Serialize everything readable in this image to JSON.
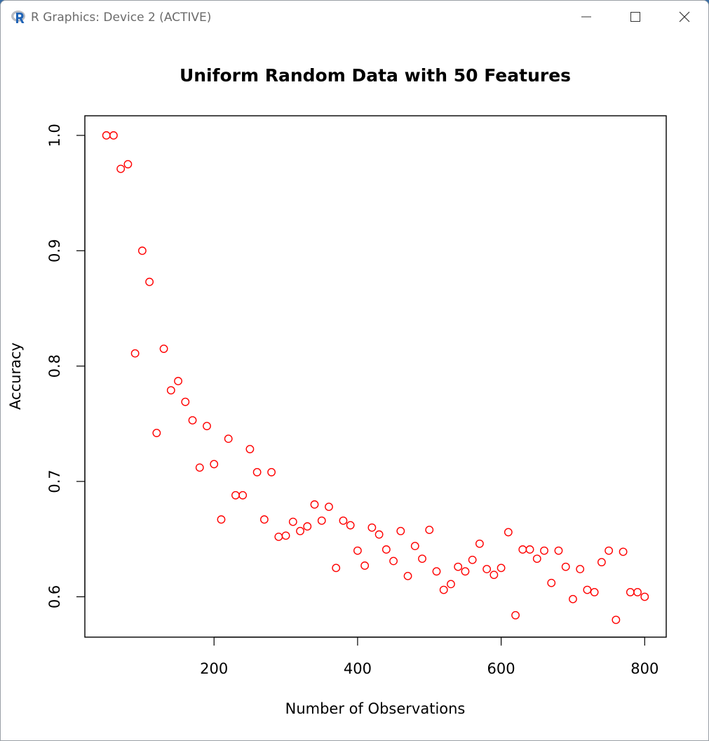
{
  "window": {
    "title": "R Graphics: Device 2 (ACTIVE)",
    "app_icon": "r-logo-icon",
    "controls": {
      "minimize": "minimize-icon",
      "maximize": "maximize-icon",
      "close": "close-icon"
    }
  },
  "chart_data": {
    "type": "scatter",
    "title": "Uniform Random Data with 50 Features",
    "xlabel": "Number of Observations",
    "ylabel": "Accuracy",
    "xlim": [
      20,
      830
    ],
    "ylim": [
      0.565,
      1.017
    ],
    "xticks": [
      200,
      400,
      600,
      800
    ],
    "yticks": [
      0.6,
      0.7,
      0.8,
      0.9,
      1.0
    ],
    "ytick_labels": [
      "0.6",
      "0.7",
      "0.8",
      "0.9",
      "1.0"
    ],
    "grid": false,
    "marker_color": "#ff0000",
    "series": [
      {
        "x": [
          50,
          60,
          70,
          80,
          90,
          100,
          110,
          120,
          130,
          140,
          150,
          160,
          170,
          180,
          190,
          200,
          210,
          220,
          230,
          240,
          250,
          260,
          270,
          280,
          290,
          300,
          310,
          320,
          330,
          340,
          350,
          360,
          370,
          380,
          390,
          400,
          410,
          420,
          430,
          440,
          450,
          460,
          470,
          480,
          490,
          500,
          510,
          520,
          530,
          540,
          550,
          560,
          570,
          580,
          590,
          600,
          610,
          620,
          630,
          640,
          650,
          660,
          670,
          680,
          690,
          700,
          710,
          720,
          730,
          740,
          750,
          760,
          770,
          780,
          790,
          800
        ],
        "y": [
          1.0,
          1.0,
          0.971,
          0.975,
          0.811,
          0.9,
          0.873,
          0.742,
          0.815,
          0.779,
          0.787,
          0.769,
          0.753,
          0.712,
          0.748,
          0.715,
          0.667,
          0.737,
          0.688,
          0.688,
          0.728,
          0.708,
          0.667,
          0.708,
          0.652,
          0.653,
          0.665,
          0.657,
          0.661,
          0.68,
          0.666,
          0.678,
          0.625,
          0.666,
          0.662,
          0.64,
          0.627,
          0.66,
          0.654,
          0.641,
          0.631,
          0.657,
          0.618,
          0.644,
          0.633,
          0.658,
          0.622,
          0.606,
          0.611,
          0.626,
          0.622,
          0.632,
          0.646,
          0.624,
          0.619,
          0.625,
          0.656,
          0.584,
          0.641,
          0.641,
          0.633,
          0.64,
          0.612,
          0.64,
          0.626,
          0.598,
          0.624,
          0.606,
          0.604,
          0.63,
          0.64,
          0.58,
          0.639,
          0.604,
          0.604,
          0.6
        ]
      }
    ]
  }
}
